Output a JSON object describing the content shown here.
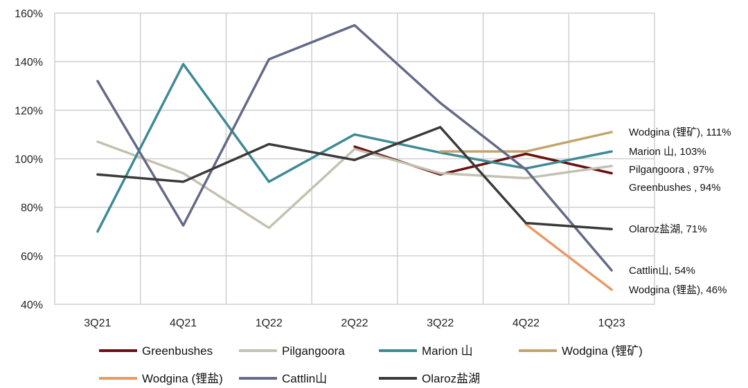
{
  "chart_data": {
    "type": "line",
    "title": "",
    "xlabel": "",
    "ylabel": "",
    "categories": [
      "3Q21",
      "4Q21",
      "1Q22",
      "2Q22",
      "3Q22",
      "4Q22",
      "1Q23"
    ],
    "ylim": [
      40,
      160
    ],
    "yticks": [
      40,
      60,
      80,
      100,
      120,
      140,
      160
    ],
    "ytick_labels": [
      "40%",
      "60%",
      "80%",
      "100%",
      "120%",
      "140%",
      "160%"
    ],
    "grid": true,
    "legend_position": "bottom",
    "series": [
      {
        "name": "Greenbushes",
        "legend_label": "Greenbushes",
        "end_label": "Greenbushes , 94%",
        "color": "#6b0f0f",
        "values": [
          null,
          null,
          null,
          105,
          93.5,
          102,
          94
        ]
      },
      {
        "name": "Pilgangoora",
        "legend_label": "Pilgangoora",
        "end_label": "Pilgangoora , 97%",
        "color": "#c4c1b1",
        "values": [
          107,
          94,
          71.5,
          104,
          94,
          92,
          97
        ]
      },
      {
        "name": "Marion 山",
        "legend_label": "Marion 山",
        "end_label": "Marion 山, 103%",
        "color": "#3d8a95",
        "values": [
          70,
          139,
          90.5,
          110,
          102.5,
          96,
          103
        ]
      },
      {
        "name": "Wodgina (锂矿)",
        "legend_label": "Wodgina (锂矿)",
        "end_label": "Wodgina (锂矿), 111%",
        "color": "#c4a46c",
        "values": [
          null,
          null,
          null,
          null,
          103,
          103,
          111
        ]
      },
      {
        "name": "Wodgina (锂盐)",
        "legend_label": "Wodgina (锂盐)",
        "end_label": "Wodgina (锂盐), 46%",
        "color": "#e89a66",
        "values": [
          null,
          null,
          null,
          null,
          null,
          73,
          46
        ]
      },
      {
        "name": "Cattlin山",
        "legend_label": "Cattlin山",
        "end_label": "Cattlin山, 54%",
        "color": "#636a87",
        "values": [
          132,
          72.5,
          141,
          155,
          123,
          95.5,
          54
        ]
      },
      {
        "name": "Olaroz盐湖",
        "legend_label": "Olaroz盐湖",
        "end_label": "Olaroz盐湖, 71%",
        "color": "#3a3a3a",
        "values": [
          93.5,
          90.5,
          106,
          99.5,
          113,
          73.5,
          71
        ]
      }
    ]
  }
}
